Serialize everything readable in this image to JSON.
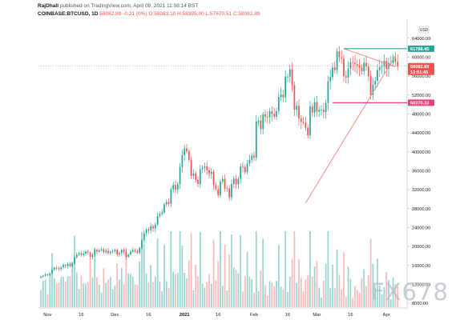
{
  "header": {
    "author": "RajDhall",
    "published_text": "published on TradingView.com, April 09, 2021 11:08:14 BST",
    "symbol": "COINBASE:BTCUSD, 1D",
    "last": "58082.89",
    "change": "-0.21 (0%)",
    "ohlc": "O:58083.10 H:58395.00 L:57670.51 C:58082.89"
  },
  "chart_data": {
    "type": "candlestick",
    "currency_label": "USD",
    "y_ticks": [
      64000,
      60000,
      56000,
      52000,
      48000,
      44000,
      40000,
      36000,
      32000,
      28000,
      24000,
      20000,
      16000,
      12000,
      8000
    ],
    "y_tick_labels": [
      "64000.00",
      "60000.00",
      "56000.00",
      "52000.00",
      "48000.00",
      "44000.00",
      "40000.00",
      "36000.00",
      "32000.00",
      "28000.00",
      "24000.00",
      "20000.00",
      "16000.00",
      "12000.00",
      "8000.00"
    ],
    "x_tick_labels": [
      "Nov",
      "16",
      "Dec",
      "16",
      "2021",
      "16",
      "Feb",
      "16",
      "Mar",
      "16",
      "Apr",
      "16"
    ],
    "x_ticks_bold": [
      "2021"
    ],
    "ylim": [
      7000,
      67000
    ],
    "price_tags": [
      {
        "value": 61788.45,
        "label": "61788.45",
        "color": "#26a69a"
      },
      {
        "value": 58082.89,
        "label": "58082.89",
        "color": "#ef5350"
      },
      {
        "value": 56900,
        "label": "13:51:45",
        "color": "#ef5350"
      },
      {
        "value": 50370.33,
        "label": "50370.33",
        "color": "#ec407a"
      }
    ],
    "trendlines": [
      {
        "from": {
          "index": 118,
          "price": 29200
        },
        "to": {
          "index": 158,
          "price": 60300
        },
        "color": "#f48a80"
      },
      {
        "from": {
          "index": 135,
          "price": 61788
        },
        "to": {
          "index": 158,
          "price": 58000
        },
        "color": "#f48a80"
      }
    ],
    "levels": [
      {
        "value": 61788.45,
        "from_index": 135,
        "color": "#26a69a"
      },
      {
        "value": 50370.33,
        "from_index": 130,
        "color": "#ec407a"
      }
    ],
    "last_price_dotted": 58082.89,
    "closes": [
      13600,
      13800,
      14100,
      14000,
      14300,
      15100,
      15500,
      15400,
      15200,
      15600,
      16100,
      15900,
      16300,
      15800,
      16400,
      17700,
      18300,
      18600,
      18200,
      18500,
      18900,
      18700,
      17800,
      18300,
      19300,
      18900,
      19200,
      19400,
      18800,
      19100,
      18600,
      18900,
      19000,
      19300,
      18300,
      18600,
      19300,
      18900,
      17800,
      18300,
      18900,
      19200,
      19000,
      18700,
      19700,
      21300,
      22800,
      23600,
      23400,
      24300,
      23800,
      24600,
      26400,
      26900,
      27200,
      28900,
      29400,
      29000,
      32100,
      33000,
      32000,
      33200,
      36800,
      39300,
      40700,
      40100,
      38300,
      34900,
      35400,
      34100,
      33200,
      36300,
      36600,
      36900,
      36100,
      35400,
      35800,
      33000,
      32100,
      30800,
      33700,
      34300,
      32200,
      32300,
      30400,
      33200,
      34300,
      33100,
      34300,
      36900,
      36800,
      35700,
      37500,
      38300,
      39200,
      38800,
      46400,
      46600,
      44800,
      47900,
      47400,
      47300,
      48600,
      48000,
      47400,
      48600,
      51600,
      52100,
      51500,
      55900,
      55900,
      57400,
      54100,
      48900,
      49700,
      47000,
      46300,
      46200,
      45100,
      43500,
      49600,
      48300,
      50500,
      48500,
      48900,
      48900,
      48400,
      50300,
      54900,
      55800,
      57800,
      57300,
      61200,
      60000,
      59700,
      56000,
      55700,
      57600,
      58900,
      58800,
      58500,
      58200,
      57800,
      57000,
      58800,
      58000,
      56000,
      52000,
      54200,
      55000,
      57300,
      57900,
      58100,
      59200,
      57600,
      58800,
      58800,
      59800,
      59000,
      58100
    ]
  },
  "watermark": "FX678"
}
